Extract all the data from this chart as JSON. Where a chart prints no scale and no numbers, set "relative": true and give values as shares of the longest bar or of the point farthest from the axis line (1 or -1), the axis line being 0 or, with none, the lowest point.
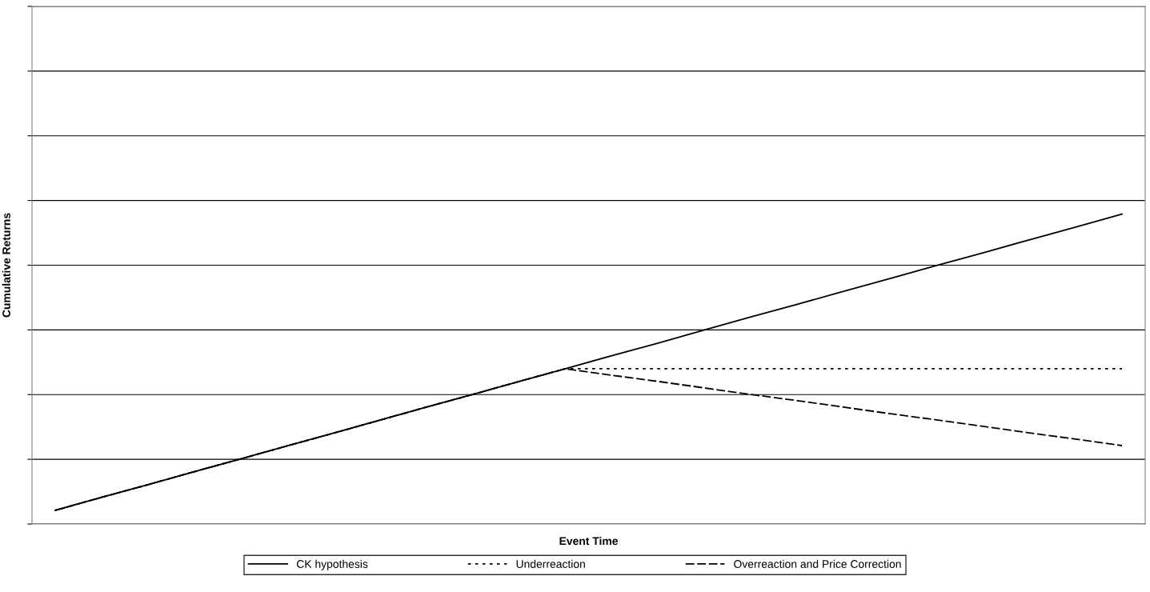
{
  "chart_data": {
    "type": "line",
    "relative": true,
    "xlabel": "Event Time",
    "ylabel": "Cumulative Returns",
    "grid": "y",
    "legend": "bottom",
    "marker": "none",
    "categories": [
      null,
      null,
      null,
      null,
      null,
      null,
      null,
      null,
      null,
      null,
      null,
      null,
      null,
      null,
      null,
      null,
      null,
      null,
      null,
      null,
      null,
      null,
      null,
      null
    ],
    "series": [
      {
        "name": "CK hypothesis",
        "color": "#000000",
        "line_style": "solid",
        "values": [
          0.044,
          0.086,
          0.127,
          0.169,
          0.21,
          0.252,
          0.293,
          0.335,
          0.377,
          0.418,
          0.46,
          0.501,
          0.543,
          0.584,
          0.626,
          0.668,
          0.709,
          0.751,
          0.792,
          0.834,
          0.875,
          0.917,
          0.958,
          1.0
        ]
      },
      {
        "name": "Underreaction",
        "color": "#000000",
        "line_style": "dotted",
        "values": [
          0.044,
          0.086,
          0.127,
          0.169,
          0.21,
          0.252,
          0.293,
          0.335,
          0.377,
          0.418,
          0.46,
          0.501,
          0.501,
          0.501,
          0.501,
          0.501,
          0.501,
          0.501,
          0.501,
          0.501,
          0.501,
          0.501,
          0.501,
          0.501
        ]
      },
      {
        "name": "Overreaction and Price Correction",
        "color": "#000000",
        "line_style": "dashed",
        "values": [
          0.044,
          0.086,
          0.127,
          0.169,
          0.21,
          0.252,
          0.293,
          0.335,
          0.377,
          0.418,
          0.46,
          0.501,
          0.48,
          0.46,
          0.439,
          0.418,
          0.398,
          0.377,
          0.356,
          0.336,
          0.315,
          0.294,
          0.274,
          0.253
        ]
      }
    ]
  }
}
